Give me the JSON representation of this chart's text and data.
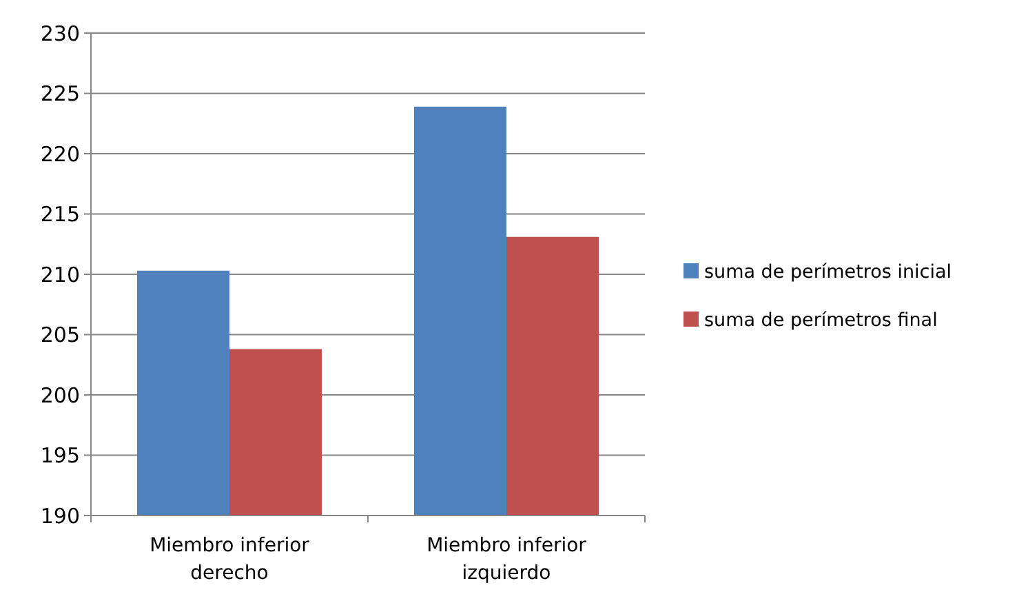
{
  "chart_data": {
    "type": "bar",
    "categories": [
      "Miembro inferior derecho",
      "Miembro inferior izquierdo"
    ],
    "series": [
      {
        "name": "suma de perímetros inicial",
        "color": "#4f81bd",
        "values": [
          210.3,
          223.9
        ]
      },
      {
        "name": "suma de perímetros final",
        "color": "#c0504d",
        "values": [
          203.8,
          213.1
        ]
      }
    ],
    "ylim": [
      190,
      230
    ],
    "yticks": [
      190,
      195,
      200,
      205,
      210,
      215,
      220,
      225,
      230
    ],
    "grid": "y",
    "legend": "right"
  }
}
